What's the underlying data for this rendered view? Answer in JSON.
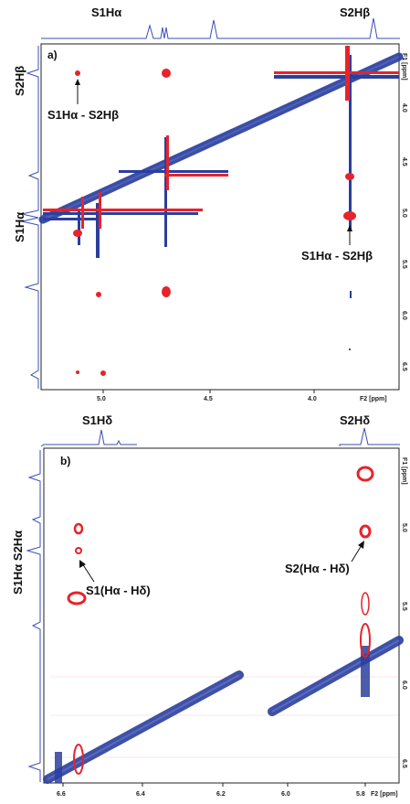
{
  "panels": [
    {
      "panel_label": "a)",
      "top_labels": [
        "S1Hα",
        "S2Hβ"
      ],
      "left_labels": [
        "S2Hβ",
        "S1Hα"
      ],
      "annotations": [
        "S1Hα - S2Hβ",
        "S1Hα - S2Hβ"
      ],
      "x_axis_label": "F2 [ppm]",
      "y_axis_label": "F1 [ppm]",
      "x_ticks": [
        "5.0",
        "4.5",
        "4.0"
      ],
      "y_ticks": [
        "4.0",
        "4.5",
        "5.0",
        "5.5",
        "6.0",
        "6.5"
      ]
    },
    {
      "panel_label": "b)",
      "top_labels": [
        "S1Hδ",
        "S2Hδ"
      ],
      "left_labels": [
        "S1Hα S2Hα"
      ],
      "annotations": [
        "S1(Hα - Hδ)",
        "S2(Hα - Hδ)"
      ],
      "x_axis_label": "F2 [ppm]",
      "y_axis_label": "F1 [ppm]",
      "x_ticks": [
        "6.6",
        "6.4",
        "6.2",
        "6.0",
        "5.8"
      ],
      "y_ticks": [
        "5.0",
        "5.5",
        "6.0",
        "6.5"
      ]
    }
  ],
  "colors": {
    "positive": "#e8232a",
    "negative": "#2a3f9e",
    "frame": "#222222",
    "projection": "#3a4fb5"
  }
}
